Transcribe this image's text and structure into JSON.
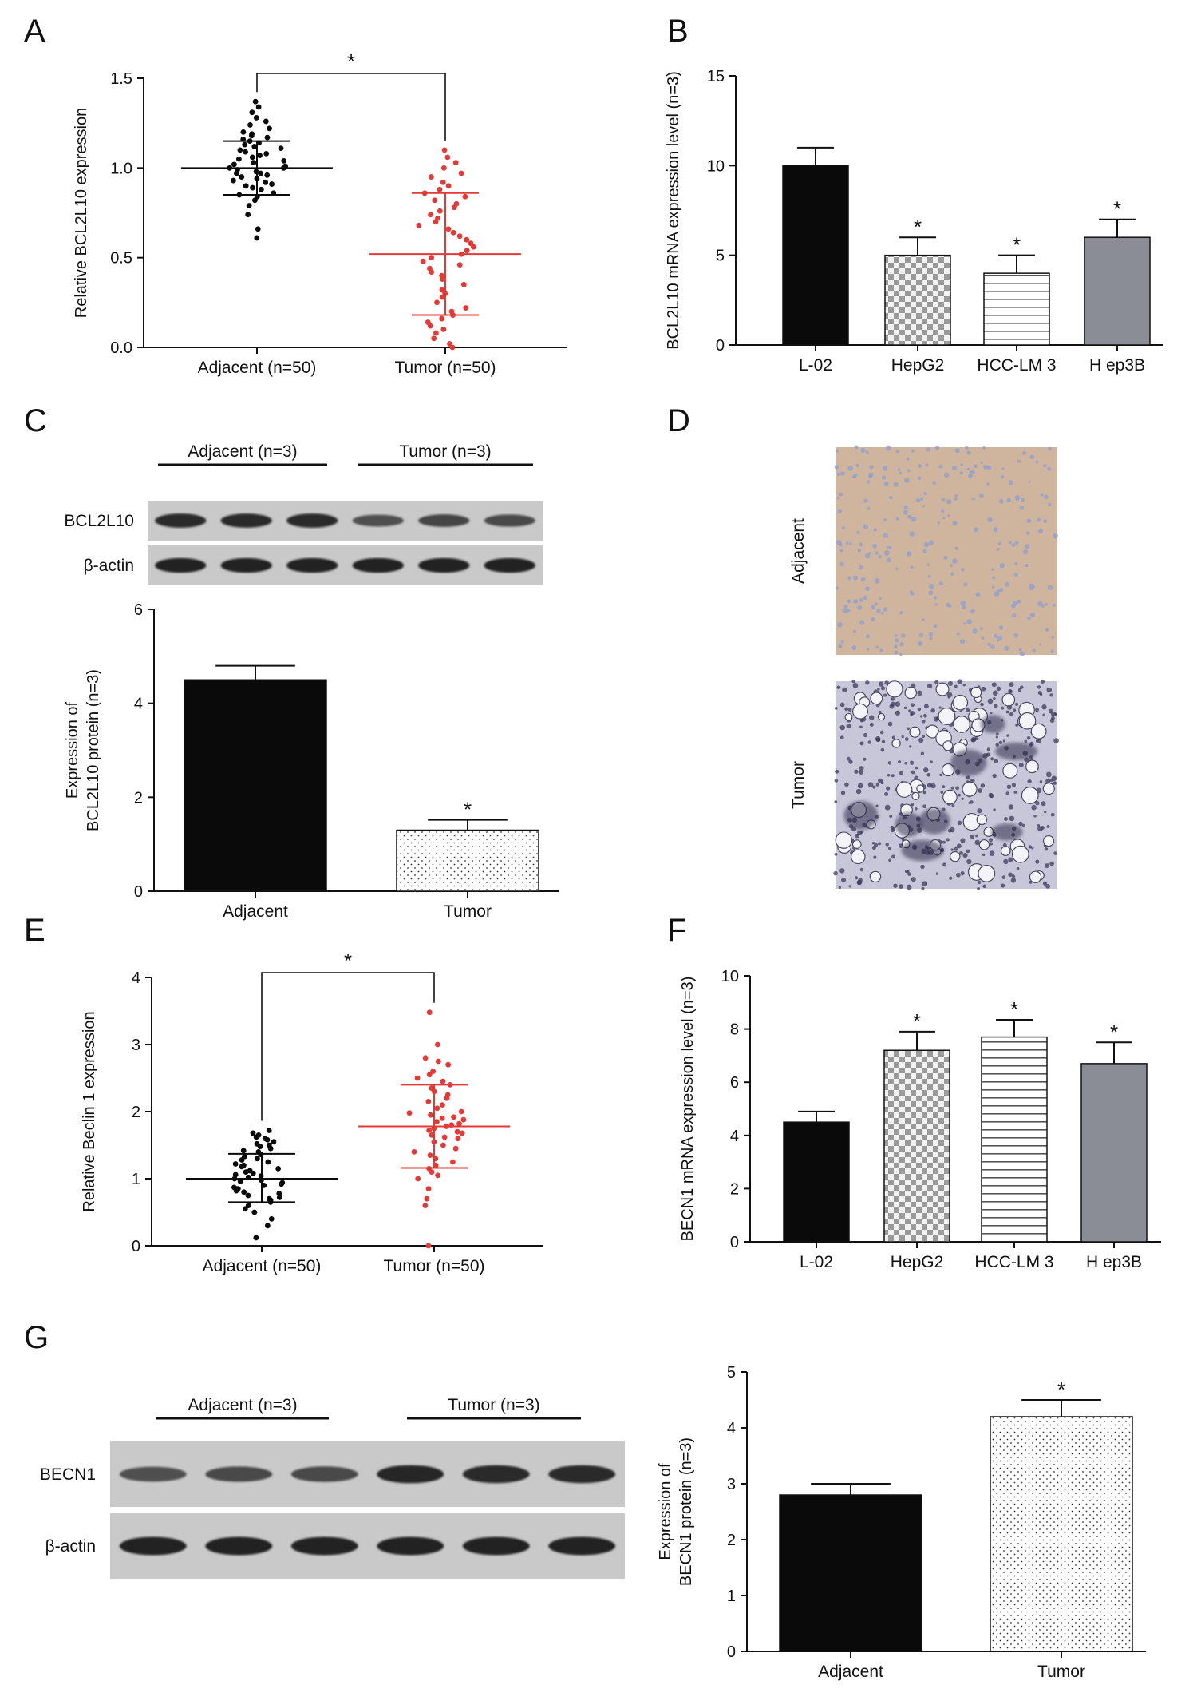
{
  "panels": [
    {
      "letter": "A",
      "x": 30,
      "y": 52
    },
    {
      "letter": "B",
      "x": 836,
      "y": 52
    },
    {
      "letter": "C",
      "x": 30,
      "y": 540
    },
    {
      "letter": "D",
      "x": 836,
      "y": 540
    },
    {
      "letter": "E",
      "x": 30,
      "y": 1178
    },
    {
      "letter": "F",
      "x": 836,
      "y": 1178
    },
    {
      "letter": "G",
      "x": 30,
      "y": 1688
    }
  ],
  "colors": {
    "black": "#0a0a0a",
    "red": "#e53935",
    "gray": "#8a8c96",
    "axis": "#111111"
  },
  "chart_data": [
    {
      "id": "A",
      "type": "scatter",
      "ylabel": "Relative BCL2L10 expression",
      "categories": [
        "Adjacent (n=50)",
        "Tumor (n=50)"
      ],
      "ylim": [
        0,
        1.5
      ],
      "yticks": [
        0.0,
        0.5,
        1.0,
        1.5
      ],
      "ytick_labels": [
        "0.0",
        "0.5",
        "1.0",
        "1.5"
      ],
      "series": [
        {
          "category": "Adjacent (n=50)",
          "color": "black",
          "mean": 1.0,
          "sd_low": 0.85,
          "sd_high": 1.15,
          "values": [
            0.61,
            0.66,
            0.74,
            0.79,
            0.82,
            0.84,
            0.85,
            0.86,
            0.88,
            0.89,
            0.9,
            0.91,
            0.92,
            0.93,
            0.94,
            0.95,
            0.96,
            0.97,
            0.97,
            0.98,
            0.99,
            1.0,
            1.0,
            1.01,
            1.02,
            1.03,
            1.04,
            1.05,
            1.06,
            1.07,
            1.08,
            1.09,
            1.1,
            1.11,
            1.12,
            1.13,
            1.14,
            1.15,
            1.16,
            1.17,
            1.18,
            1.19,
            1.2,
            1.22,
            1.24,
            1.26,
            1.28,
            1.31,
            1.34,
            1.37
          ]
        },
        {
          "category": "Tumor (n=50)",
          "color": "red",
          "mean": 0.52,
          "sd_low": 0.18,
          "sd_high": 0.86,
          "values": [
            0.0,
            0.02,
            0.05,
            0.08,
            0.1,
            0.12,
            0.14,
            0.16,
            0.18,
            0.2,
            0.22,
            0.25,
            0.28,
            0.3,
            0.32,
            0.35,
            0.38,
            0.4,
            0.42,
            0.44,
            0.46,
            0.48,
            0.5,
            0.52,
            0.54,
            0.56,
            0.58,
            0.6,
            0.62,
            0.64,
            0.66,
            0.68,
            0.7,
            0.72,
            0.74,
            0.76,
            0.78,
            0.8,
            0.82,
            0.84,
            0.86,
            0.88,
            0.9,
            0.92,
            0.95,
            0.97,
            1.0,
            1.03,
            1.06,
            1.1
          ]
        }
      ],
      "significance": {
        "from": 0,
        "to": 1,
        "label": "*"
      }
    },
    {
      "id": "B",
      "type": "bar",
      "ylabel": "BCL2L10 mRNA expression level (n=3)",
      "categories": [
        "L-02",
        "HepG2",
        "HCC-LM 3",
        "H ep3B"
      ],
      "values": [
        10,
        5,
        4,
        6
      ],
      "errors": [
        1,
        1,
        1,
        1
      ],
      "patterns": [
        "solid-black",
        "checker",
        "hstripes",
        "solid-gray"
      ],
      "stars": [
        "",
        "*",
        "*",
        "*"
      ],
      "ylim": [
        0,
        15
      ],
      "yticks": [
        0,
        5,
        10,
        15
      ],
      "ytick_labels": [
        "0",
        "5",
        "10",
        "15"
      ]
    },
    {
      "id": "C",
      "type": "bar",
      "ylabel": [
        "Expression of",
        "BCL2L10 protein (n=3)"
      ],
      "categories": [
        "Adjacent",
        "Tumor"
      ],
      "values": [
        4.5,
        1.3
      ],
      "errors": [
        0.3,
        0.22
      ],
      "patterns": [
        "solid-black",
        "dots"
      ],
      "stars": [
        "",
        "*"
      ],
      "ylim": [
        0,
        6
      ],
      "yticks": [
        0,
        2,
        4,
        6
      ],
      "ytick_labels": [
        "0",
        "2",
        "4",
        "6"
      ]
    },
    {
      "id": "E",
      "type": "scatter",
      "ylabel": "Relative Beclin 1 expression",
      "categories": [
        "Adjacent (n=50)",
        "Tumor (n=50)"
      ],
      "ylim": [
        0,
        4
      ],
      "yticks": [
        0,
        1,
        2,
        3,
        4
      ],
      "ytick_labels": [
        "0",
        "1",
        "2",
        "3",
        "4"
      ],
      "series": [
        {
          "category": "Adjacent (n=50)",
          "color": "black",
          "mean": 1.0,
          "sd_low": 0.65,
          "sd_high": 1.37,
          "values": [
            0.12,
            0.3,
            0.4,
            0.5,
            0.55,
            0.6,
            0.65,
            0.68,
            0.7,
            0.72,
            0.75,
            0.78,
            0.8,
            0.82,
            0.85,
            0.87,
            0.9,
            0.92,
            0.94,
            0.96,
            0.98,
            1.0,
            1.02,
            1.04,
            1.06,
            1.08,
            1.1,
            1.12,
            1.15,
            1.18,
            1.2,
            1.22,
            1.25,
            1.28,
            1.3,
            1.33,
            1.36,
            1.4,
            1.42,
            1.45,
            1.48,
            1.5,
            1.52,
            1.55,
            1.58,
            1.6,
            1.62,
            1.65,
            1.68,
            1.72
          ]
        },
        {
          "category": "Tumor (n=50)",
          "color": "red",
          "mean": 1.78,
          "sd_low": 1.16,
          "sd_high": 2.4,
          "values": [
            0.0,
            0.6,
            0.7,
            0.85,
            1.0,
            1.05,
            1.1,
            1.15,
            1.2,
            1.25,
            1.3,
            1.35,
            1.4,
            1.45,
            1.5,
            1.55,
            1.6,
            1.62,
            1.65,
            1.68,
            1.7,
            1.72,
            1.75,
            1.78,
            1.8,
            1.82,
            1.85,
            1.88,
            1.9,
            1.92,
            1.95,
            1.98,
            2.0,
            2.05,
            2.1,
            2.15,
            2.2,
            2.25,
            2.3,
            2.35,
            2.4,
            2.45,
            2.5,
            2.55,
            2.6,
            2.7,
            2.75,
            2.8,
            3.0,
            3.48
          ]
        }
      ],
      "significance": {
        "from": 0,
        "to": 1,
        "label": "*"
      }
    },
    {
      "id": "F",
      "type": "bar",
      "ylabel": "BECN1 mRNA expression level (n=3)",
      "categories": [
        "L-02",
        "HepG2",
        "HCC-LM 3",
        "H ep3B"
      ],
      "values": [
        4.5,
        7.2,
        7.7,
        6.7
      ],
      "errors": [
        0.4,
        0.7,
        0.65,
        0.8
      ],
      "patterns": [
        "solid-black",
        "checker",
        "hstripes",
        "solid-gray"
      ],
      "stars": [
        "",
        "*",
        "*",
        "*"
      ],
      "ylim": [
        0,
        10
      ],
      "yticks": [
        0,
        2,
        4,
        6,
        8,
        10
      ],
      "ytick_labels": [
        "0",
        "2",
        "4",
        "6",
        "8",
        "10"
      ]
    },
    {
      "id": "G",
      "type": "bar",
      "ylabel": [
        "Expression of",
        "BECN1 protein (n=3)"
      ],
      "categories": [
        "Adjacent",
        "Tumor"
      ],
      "values": [
        2.8,
        4.2
      ],
      "errors": [
        0.2,
        0.3
      ],
      "patterns": [
        "solid-black",
        "dots"
      ],
      "stars": [
        "",
        "*"
      ],
      "ylim": [
        0,
        5
      ],
      "yticks": [
        0,
        1,
        2,
        3,
        4,
        5
      ],
      "ytick_labels": [
        "0",
        "1",
        "2",
        "3",
        "4",
        "5"
      ]
    }
  ],
  "blots": [
    {
      "id": "C-blot",
      "groups": [
        "Adjacent (n=3)",
        "Tumor (n=3)"
      ],
      "rows": [
        {
          "label": "BCL2L10",
          "intensity": [
            0.9,
            0.88,
            0.9,
            0.55,
            0.65,
            0.6
          ]
        },
        {
          "label": "β-actin",
          "intensity": [
            0.95,
            0.95,
            0.95,
            0.95,
            0.95,
            0.95
          ]
        }
      ]
    },
    {
      "id": "G-blot",
      "groups": [
        "Adjacent (n=3)",
        "Tumor (n=3)"
      ],
      "rows": [
        {
          "label": "BECN1",
          "intensity": [
            0.55,
            0.6,
            0.62,
            0.92,
            0.9,
            0.9
          ]
        },
        {
          "label": "β-actin",
          "intensity": [
            0.95,
            0.95,
            0.95,
            0.95,
            0.95,
            0.95
          ]
        }
      ]
    }
  ],
  "histology": [
    {
      "label": "Adjacent"
    },
    {
      "label": "Tumor"
    }
  ]
}
